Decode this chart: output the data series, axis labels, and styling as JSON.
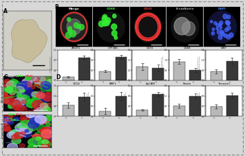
{
  "figure_bg": "#d8d8d8",
  "border_color": "#888888",
  "panel_bg": "#000000",
  "panel_A_bg": "#d0cfc8",
  "B_labels": [
    "Merge",
    "CD68",
    "CD31",
    "E-cadherin",
    "DAPI"
  ],
  "B_label_colors": [
    "#ffffff",
    "#44ee44",
    "#ee4444",
    "#bbbbbb",
    "#4488ff"
  ],
  "bar_groups_row1": [
    {
      "title": "ASGR1",
      "values": [
        0.12,
        0.82
      ],
      "errors": [
        0.02,
        0.07
      ],
      "ylim": [
        0,
        1.1
      ]
    },
    {
      "title": "CYP3A5",
      "values": [
        0.42,
        1.08
      ],
      "errors": [
        0.05,
        0.1
      ],
      "ylim": [
        0,
        1.4
      ]
    },
    {
      "title": "CD31",
      "values": [
        1.0,
        0.98
      ],
      "errors": [
        0.05,
        0.05
      ],
      "ylim": [
        0.8,
        1.25
      ]
    },
    {
      "title": "CD68",
      "values": [
        1.0,
        0.82
      ],
      "errors": [
        0.05,
        0.05
      ],
      "ylim": [
        0.6,
        1.25
      ]
    },
    {
      "title": "VWF",
      "values": [
        0.82,
        1.08
      ],
      "errors": [
        0.05,
        0.08
      ],
      "ylim": [
        0.6,
        1.35
      ]
    }
  ],
  "bar_groups_row2": [
    {
      "title": "CD14",
      "values": [
        0.92,
        1.08
      ],
      "errors": [
        0.05,
        0.08
      ],
      "ylim": [
        0.7,
        1.3
      ]
    },
    {
      "title": "BMF1",
      "values": [
        0.25,
        1.0
      ],
      "errors": [
        0.15,
        0.2
      ],
      "ylim": [
        0,
        1.5
      ]
    },
    {
      "title": "EpCAM",
      "values": [
        0.25,
        0.88
      ],
      "errors": [
        0.03,
        0.08
      ],
      "ylim": [
        0,
        1.2
      ]
    },
    {
      "title": "Nestin",
      "values": [
        0.85,
        1.1
      ],
      "errors": [
        0.05,
        0.06
      ],
      "ylim": [
        0.6,
        1.35
      ]
    },
    {
      "title": "Tenascin",
      "values": [
        0.62,
        0.88
      ],
      "errors": [
        0.05,
        0.06
      ],
      "ylim": [
        0.4,
        1.1
      ]
    }
  ],
  "bar_color_light": "#b8b8b8",
  "bar_color_dark": "#383838"
}
